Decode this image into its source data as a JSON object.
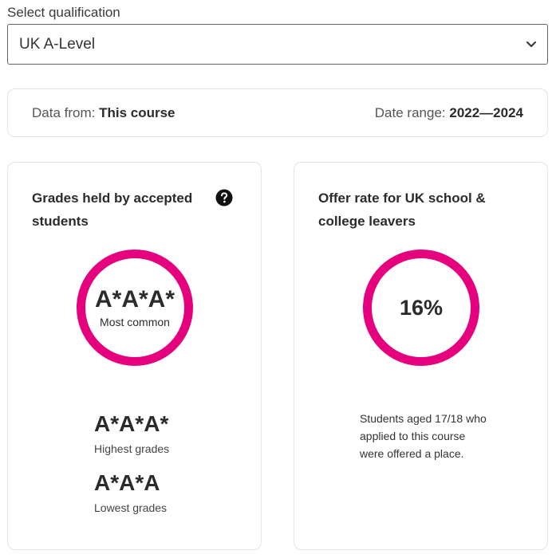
{
  "qualification": {
    "label": "Select qualification",
    "selected": "UK A-Level",
    "icon": "chevron-down-icon"
  },
  "info": {
    "data_from_label": "Data from:",
    "data_from_value": "This course",
    "date_range_label": "Date range:",
    "date_range_value": "2022—2024"
  },
  "grades_card": {
    "title": "Grades held by accepted students",
    "help_icon": "question-circle-icon",
    "most_common_value": "A*A*A*",
    "most_common_label": "Most common",
    "highest_value": "A*A*A*",
    "highest_label": "Highest grades",
    "lowest_value": "A*A*A",
    "lowest_label": "Lowest grades"
  },
  "offer_card": {
    "title": "Offer rate for UK school & college leavers",
    "rate": "16%",
    "description": "Students aged 17/18 who applied to this course were offered a place."
  },
  "colors": {
    "accent": "#e5007e",
    "text": "#2b2b2b",
    "border": "#e4e4e4"
  }
}
